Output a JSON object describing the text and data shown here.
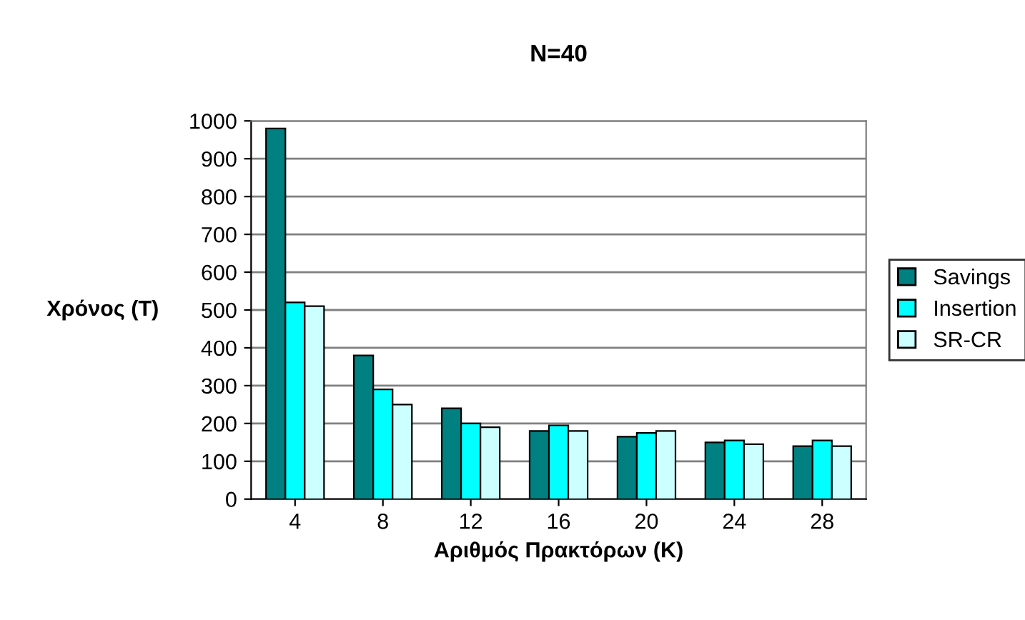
{
  "chart_data": {
    "type": "bar",
    "title": "N=40",
    "xlabel": "Αριθμός Πρακτόρων (K)",
    "ylabel": "Χρόνος (T)",
    "categories": [
      "4",
      "8",
      "12",
      "16",
      "20",
      "24",
      "28"
    ],
    "series": [
      {
        "name": "Savings",
        "color": "#008080",
        "values": [
          980,
          380,
          240,
          180,
          165,
          150,
          140
        ]
      },
      {
        "name": "Insertion",
        "color": "#00ffff",
        "values": [
          520,
          290,
          200,
          195,
          175,
          155,
          155
        ]
      },
      {
        "name": "SR-CR",
        "color": "#ccffff",
        "values": [
          510,
          250,
          190,
          180,
          180,
          145,
          140
        ]
      }
    ],
    "ylim": [
      0,
      1000
    ],
    "yticks": [
      0,
      100,
      200,
      300,
      400,
      500,
      600,
      700,
      800,
      900,
      1000
    ],
    "grid": "y",
    "legend": "right"
  }
}
